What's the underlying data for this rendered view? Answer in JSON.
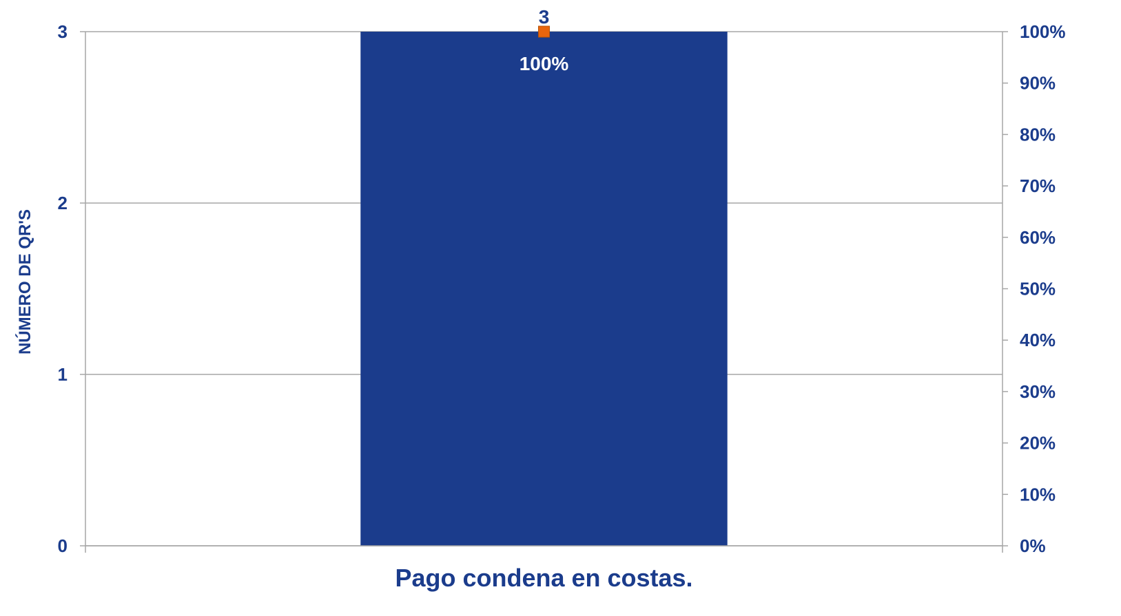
{
  "chart_data": {
    "type": "bar",
    "categories": [
      "Pago condena en costas."
    ],
    "series": [
      {
        "kind": "bar",
        "values": [
          3
        ],
        "color": "#1b3c8c",
        "axis": "left"
      },
      {
        "kind": "line",
        "values": [
          1.0
        ],
        "color": "#e8650e",
        "axis": "right",
        "marker": "square"
      }
    ],
    "data_labels": {
      "bar": [
        "3"
      ],
      "line": [
        "100%"
      ]
    },
    "ylabel": "NÚMERO DE QR'S",
    "ylim": [
      0,
      3
    ],
    "y_ticks": [
      "0",
      "1",
      "2",
      "3"
    ],
    "y2lim": [
      0,
      1
    ],
    "y2_ticks": [
      "0%",
      "10%",
      "20%",
      "30%",
      "40%",
      "50%",
      "60%",
      "70%",
      "80%",
      "90%",
      "100%"
    ],
    "grid": true,
    "legend": "none",
    "colors": {
      "text": "#1b3c8c",
      "grid": "#a6a6a6"
    }
  }
}
